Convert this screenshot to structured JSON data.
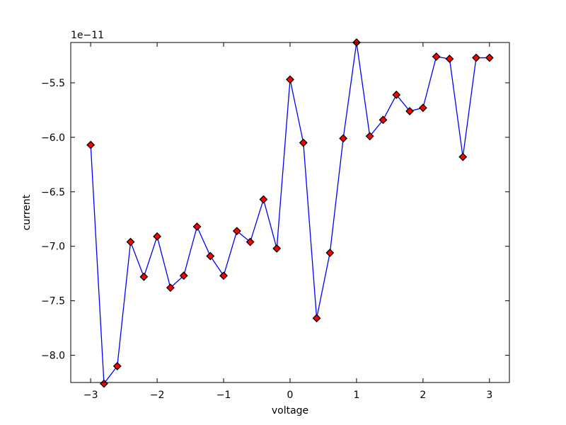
{
  "chart_data": {
    "type": "line",
    "title": "",
    "xlabel": "voltage",
    "ylabel": "current",
    "offset_label": "1e−11",
    "xlim": [
      -3.3,
      3.3
    ],
    "ylim": [
      -8.25,
      -5.13
    ],
    "xticks": [
      -3,
      -2,
      -1,
      0,
      1,
      2,
      3
    ],
    "xtick_labels": [
      "−3",
      "−2",
      "−1",
      "0",
      "1",
      "2",
      "3"
    ],
    "yticks": [
      -8.0,
      -7.5,
      -7.0,
      -6.5,
      -6.0,
      -5.5
    ],
    "ytick_labels": [
      "−8.0",
      "−7.5",
      "−7.0",
      "−6.5",
      "−6.0",
      "−5.5"
    ],
    "grid": false,
    "series": [
      {
        "line_color": "#0000ff",
        "marker_face": "#ff0000",
        "marker_edge": "#000000",
        "marker": "diamond",
        "x": [
          -3.0,
          -2.8,
          -2.6,
          -2.4,
          -2.2,
          -2.0,
          -1.8,
          -1.6,
          -1.4,
          -1.2,
          -1.0,
          -0.8,
          -0.6,
          -0.4,
          -0.2,
          0.0,
          0.2,
          0.4,
          0.6,
          0.8,
          1.0,
          1.2,
          1.4,
          1.6,
          1.8,
          2.0,
          2.2,
          2.4,
          2.6,
          2.8,
          3.0
        ],
        "y": [
          -6.07,
          -8.26,
          -8.1,
          -6.96,
          -7.28,
          -6.91,
          -7.38,
          -7.27,
          -6.82,
          -7.09,
          -7.27,
          -6.86,
          -6.96,
          -6.57,
          -7.02,
          -5.47,
          -6.05,
          -7.66,
          -7.06,
          -6.01,
          -5.13,
          -5.99,
          -5.84,
          -5.61,
          -5.76,
          -5.73,
          -5.26,
          -5.28,
          -6.18,
          -5.27,
          -5.27
        ]
      }
    ]
  }
}
